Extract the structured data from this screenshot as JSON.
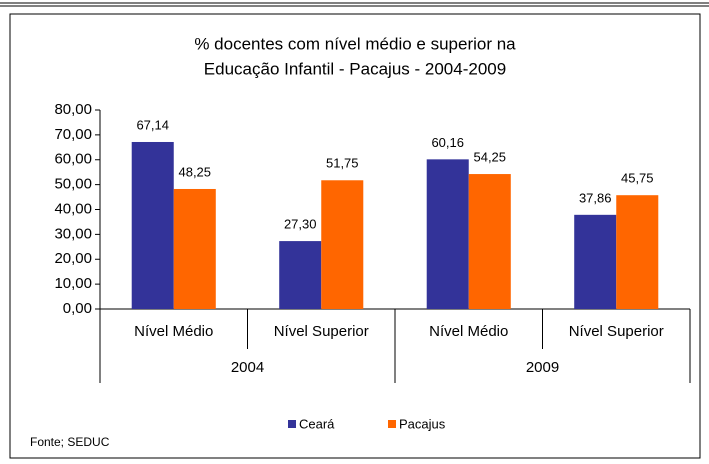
{
  "chart_data": {
    "type": "bar",
    "title": [
      "% docentes com nível médio e superior na",
      "Educação Infantil - Pacajus  - 2004-2009"
    ],
    "groups": [
      {
        "label": "2004",
        "categories": [
          "Nível Médio",
          "Nível Superior"
        ]
      },
      {
        "label": "2009",
        "categories": [
          "Nível Médio",
          "Nível Superior"
        ]
      }
    ],
    "series": [
      {
        "name": "Ceará",
        "color": "#333399",
        "values": [
          67.14,
          27.3,
          60.16,
          37.86
        ],
        "value_labels": [
          "67,14",
          "27,30",
          "60,16",
          "37,86"
        ]
      },
      {
        "name": "Pacajus",
        "color": "#ff6600",
        "values": [
          48.25,
          51.75,
          54.25,
          45.75
        ],
        "value_labels": [
          "48,25",
          "51,75",
          "54,25",
          "45,75"
        ]
      }
    ],
    "ylim": [
      0,
      80
    ],
    "yticks": [
      {
        "value": 0,
        "label": "0,00"
      },
      {
        "value": 10,
        "label": "10,00"
      },
      {
        "value": 20,
        "label": "20,00"
      },
      {
        "value": 30,
        "label": "30,00"
      },
      {
        "value": 40,
        "label": "40,00"
      },
      {
        "value": 50,
        "label": "50,00"
      },
      {
        "value": 60,
        "label": "60,00"
      },
      {
        "value": 70,
        "label": "70,00"
      },
      {
        "value": 80,
        "label": "80,00"
      }
    ],
    "legend": "bottom",
    "source": "Fonte; SEDUC"
  }
}
